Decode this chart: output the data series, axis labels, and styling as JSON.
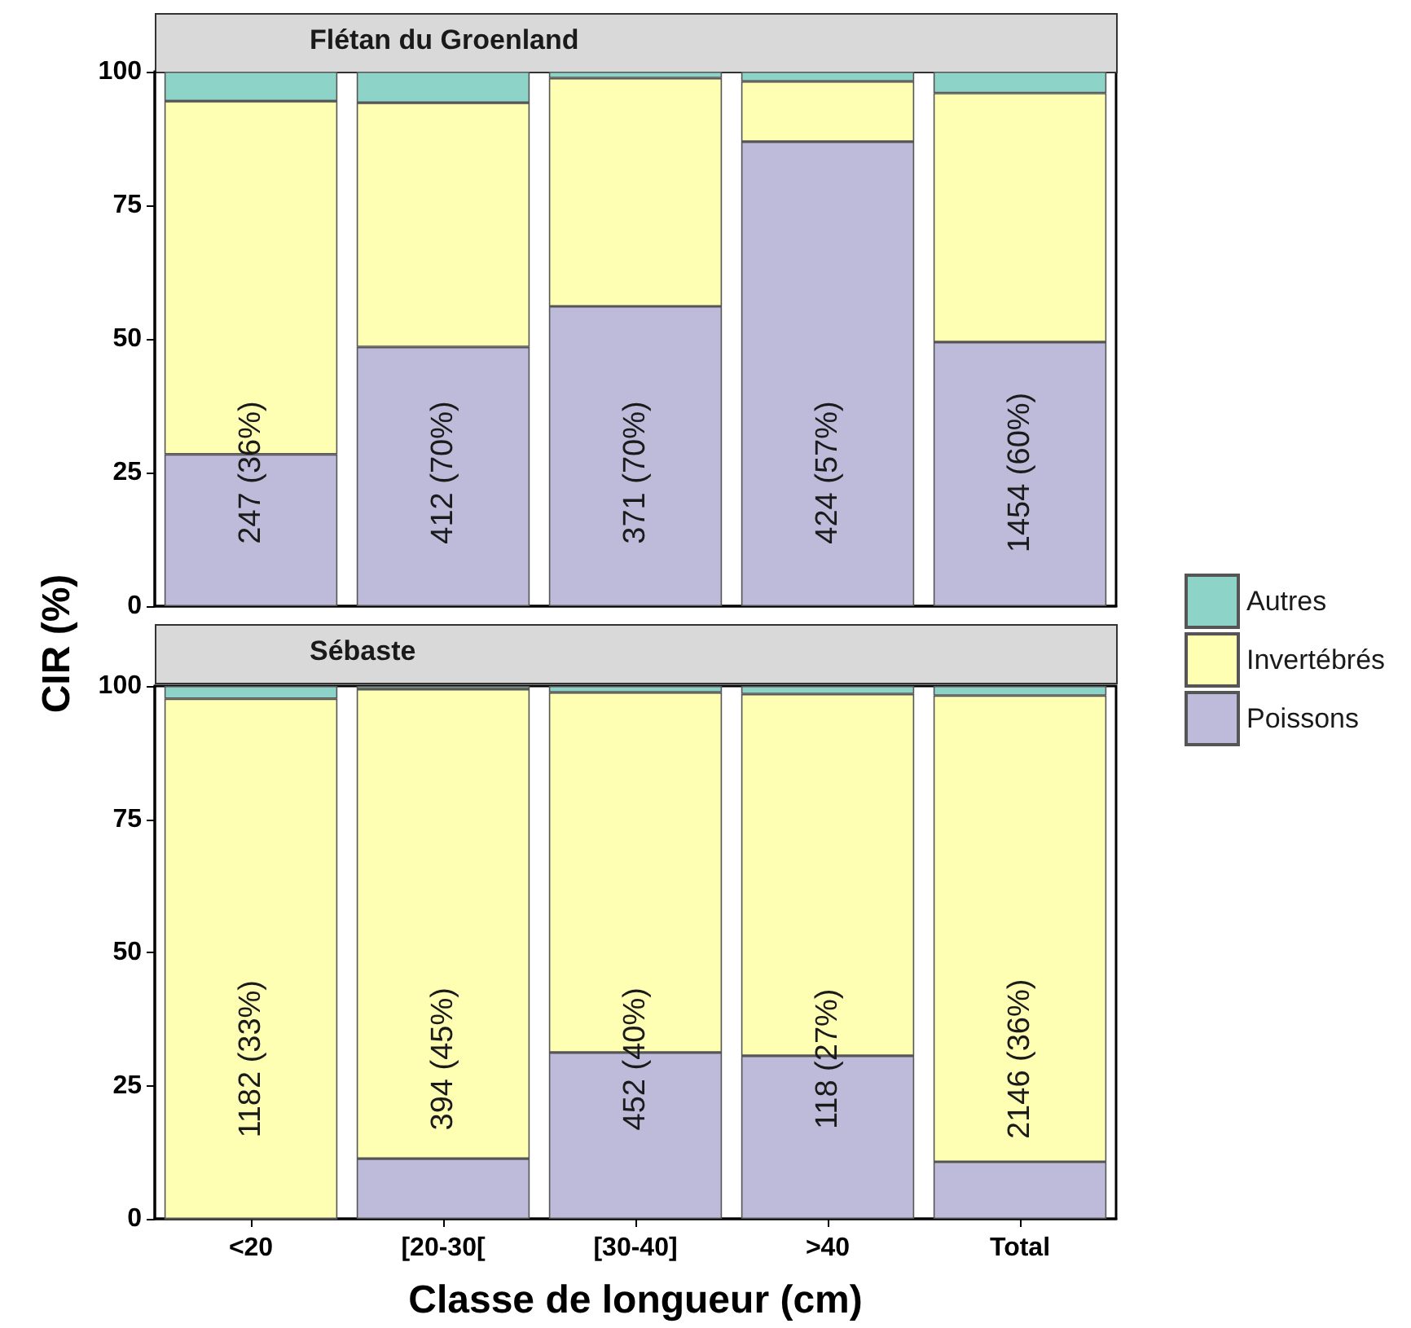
{
  "chart_data": [
    {
      "type": "bar",
      "title": "Flétan du Groenland",
      "ylabel": "CIR (%)",
      "categories": [
        null,
        null,
        null,
        null,
        null
      ],
      "stacked": true,
      "ylim": [
        0,
        100
      ],
      "yticks": [
        0,
        25,
        50,
        75,
        100
      ],
      "tick_labels": "y",
      "legend": "right",
      "series": [
        {
          "name": "Poissons",
          "color": "#bebada",
          "values": [
            28.4,
            48.5,
            56.1,
            86.9,
            49.4
          ]
        },
        {
          "name": "Invertébrés",
          "color": "#ffffb3",
          "values": [
            66.1,
            45.7,
            42.7,
            11.3,
            46.6
          ]
        },
        {
          "name": "Autres",
          "color": "#8dd3c7",
          "values": [
            5.5,
            5.8,
            1.2,
            1.8,
            4.0
          ]
        }
      ],
      "annotations": [
        "247 (36%)",
        "412 (70%)",
        "371 (70%)",
        "424 (57%)",
        "1454 (60%)"
      ]
    },
    {
      "type": "bar",
      "title": "Sébaste",
      "xlabel": "Classe de longueur (cm)",
      "categories": [
        "<20",
        "[20-30[",
        "[30-40]",
        ">40",
        "Total"
      ],
      "stacked": true,
      "ylim": [
        0,
        100
      ],
      "yticks": [
        0,
        25,
        50,
        75,
        100
      ],
      "legend": "right",
      "series": [
        {
          "name": "Poissons",
          "color": "#bebada",
          "values": [
            0,
            11.3,
            31.2,
            30.6,
            10.7
          ]
        },
        {
          "name": "Invertébrés",
          "color": "#ffffb3",
          "values": [
            97.6,
            88.1,
            67.6,
            67.9,
            87.5
          ]
        },
        {
          "name": "Autres",
          "color": "#8dd3c7",
          "values": [
            2.4,
            0.6,
            1.2,
            1.5,
            1.8
          ]
        }
      ],
      "annotations": [
        "1182 (33%)",
        "394 (45%)",
        "452 (40%)",
        "118 (27%)",
        "2146 (36%)"
      ]
    }
  ]
}
